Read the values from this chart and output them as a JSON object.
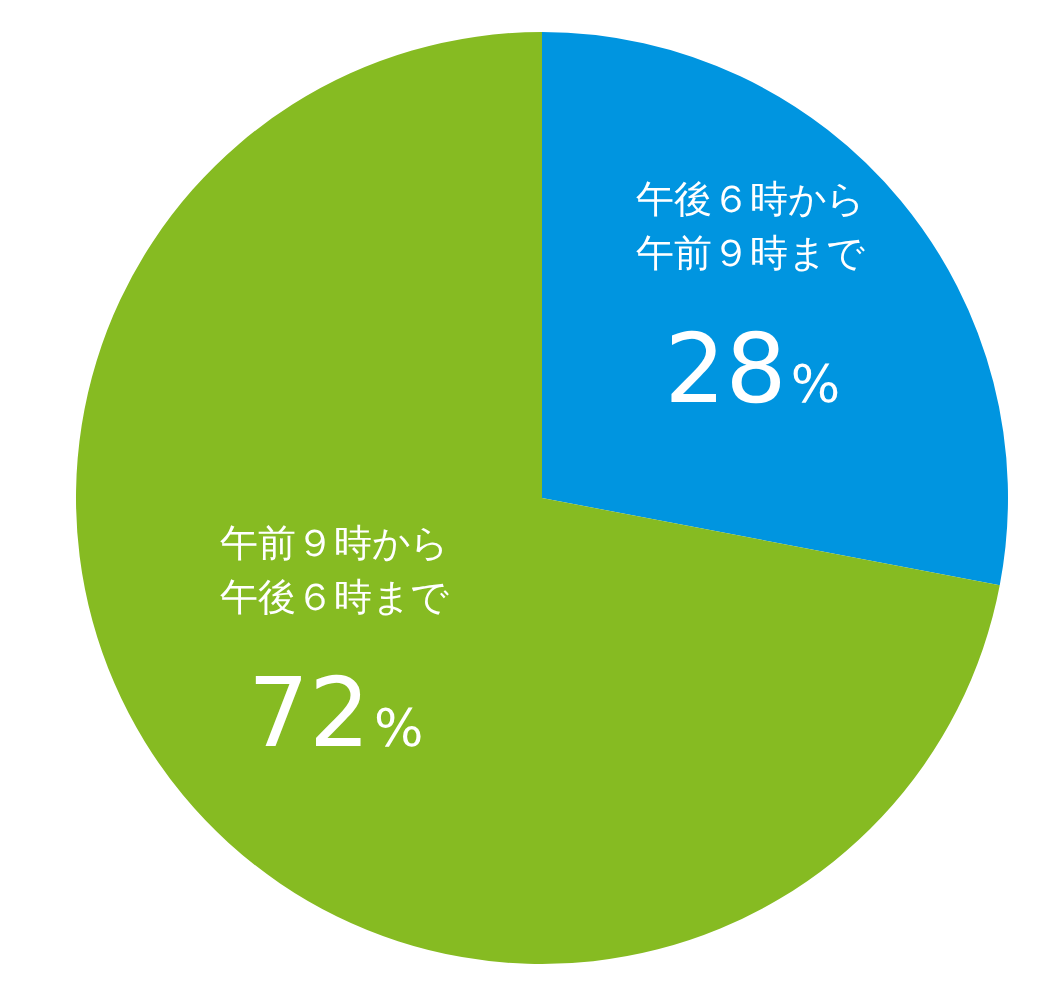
{
  "chart_data": {
    "type": "pie",
    "categories": [
      "午後６時から午前９時まで",
      "午前９時から午後６時まで"
    ],
    "values": [
      28,
      72
    ],
    "colors": [
      "#0095e0",
      "#86bb22"
    ],
    "value_labels": [
      "28%",
      "72%"
    ],
    "legend": false
  }
}
